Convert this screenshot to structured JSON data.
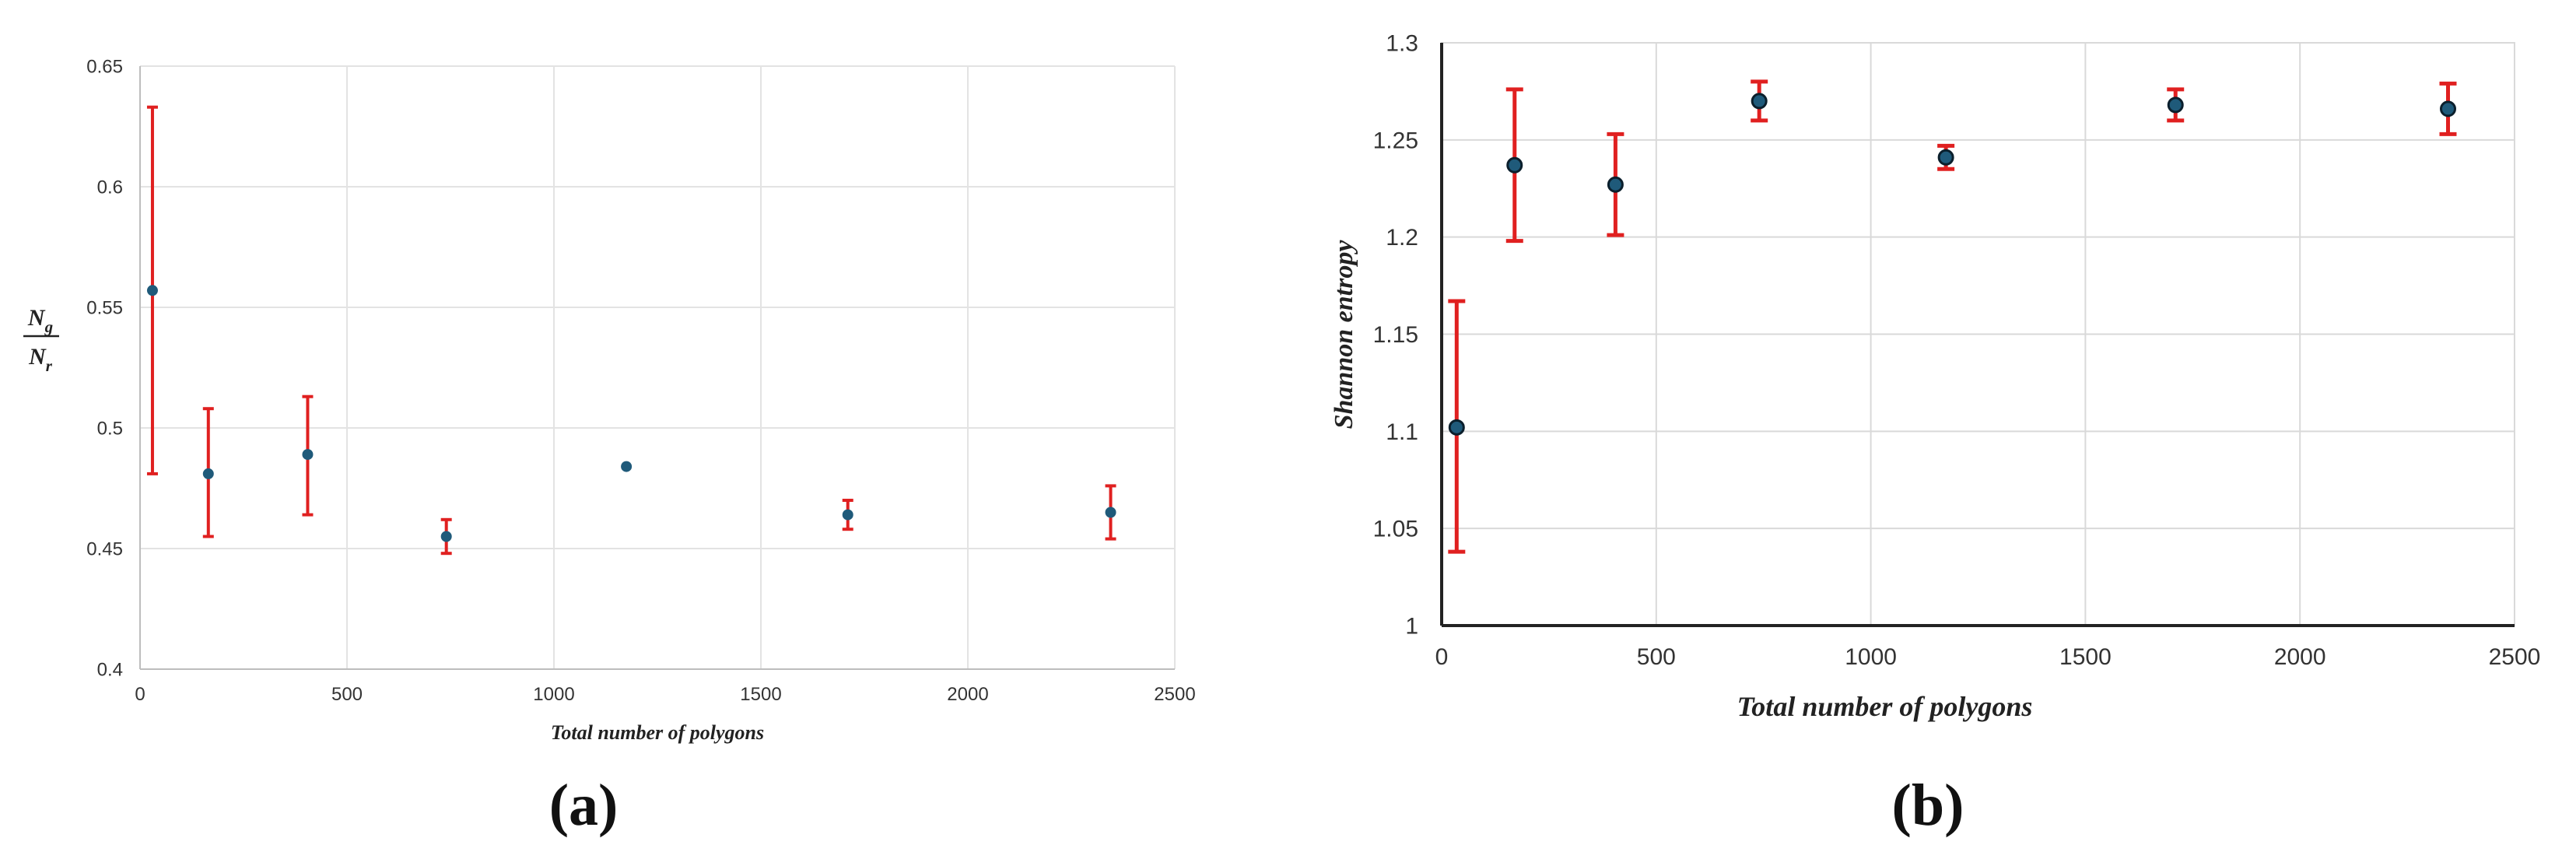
{
  "chart_data": [
    {
      "type": "scatter",
      "panel_label": "(a)",
      "title": "",
      "xlabel": "Total number of polygons",
      "ylabel_top": "N",
      "ylabel_top_sub": "g",
      "ylabel_bottom": "N",
      "ylabel_bottom_sub": "r",
      "xlim": [
        0,
        2500
      ],
      "ylim": [
        0.4,
        0.65
      ],
      "xticks": [
        "0",
        "500",
        "1000",
        "1500",
        "2000",
        "2500"
      ],
      "yticks": [
        "0.4",
        "0.45",
        "0.5",
        "0.55",
        "0.6",
        "0.65"
      ],
      "grid": true,
      "marker_color": "#1f5a7a",
      "error_color": "#e02020",
      "points": [
        {
          "x": 30,
          "y": 0.557,
          "err_low": 0.481,
          "err_high": 0.633
        },
        {
          "x": 165,
          "y": 0.481,
          "err_low": 0.455,
          "err_high": 0.508
        },
        {
          "x": 405,
          "y": 0.489,
          "err_low": 0.464,
          "err_high": 0.513
        },
        {
          "x": 740,
          "y": 0.455,
          "err_low": 0.448,
          "err_high": 0.462
        },
        {
          "x": 1175,
          "y": 0.484,
          "err_low": 0.484,
          "err_high": 0.484
        },
        {
          "x": 1710,
          "y": 0.464,
          "err_low": 0.458,
          "err_high": 0.47
        },
        {
          "x": 2345,
          "y": 0.465,
          "err_low": 0.454,
          "err_high": 0.476
        }
      ]
    },
    {
      "type": "scatter",
      "panel_label": "(b)",
      "title": "",
      "xlabel": "Total number of polygons",
      "ylabel": "Shannon entropy",
      "xlim": [
        0,
        2500
      ],
      "ylim": [
        1,
        1.3
      ],
      "xticks": [
        "0",
        "500",
        "1000",
        "1500",
        "2000",
        "2500"
      ],
      "yticks": [
        "1",
        "1.05",
        "1.1",
        "1.15",
        "1.2",
        "1.25",
        "1.3"
      ],
      "grid": true,
      "marker_color": "#1f5a7a",
      "error_color": "#e02020",
      "points": [
        {
          "x": 35,
          "y": 1.102,
          "err_low": 1.038,
          "err_high": 1.167
        },
        {
          "x": 170,
          "y": 1.237,
          "err_low": 1.198,
          "err_high": 1.276
        },
        {
          "x": 405,
          "y": 1.227,
          "err_low": 1.201,
          "err_high": 1.253
        },
        {
          "x": 740,
          "y": 1.27,
          "err_low": 1.26,
          "err_high": 1.28
        },
        {
          "x": 1175,
          "y": 1.241,
          "err_low": 1.235,
          "err_high": 1.247
        },
        {
          "x": 1710,
          "y": 1.268,
          "err_low": 1.26,
          "err_high": 1.276
        },
        {
          "x": 2345,
          "y": 1.266,
          "err_low": 1.253,
          "err_high": 1.279
        }
      ]
    }
  ]
}
